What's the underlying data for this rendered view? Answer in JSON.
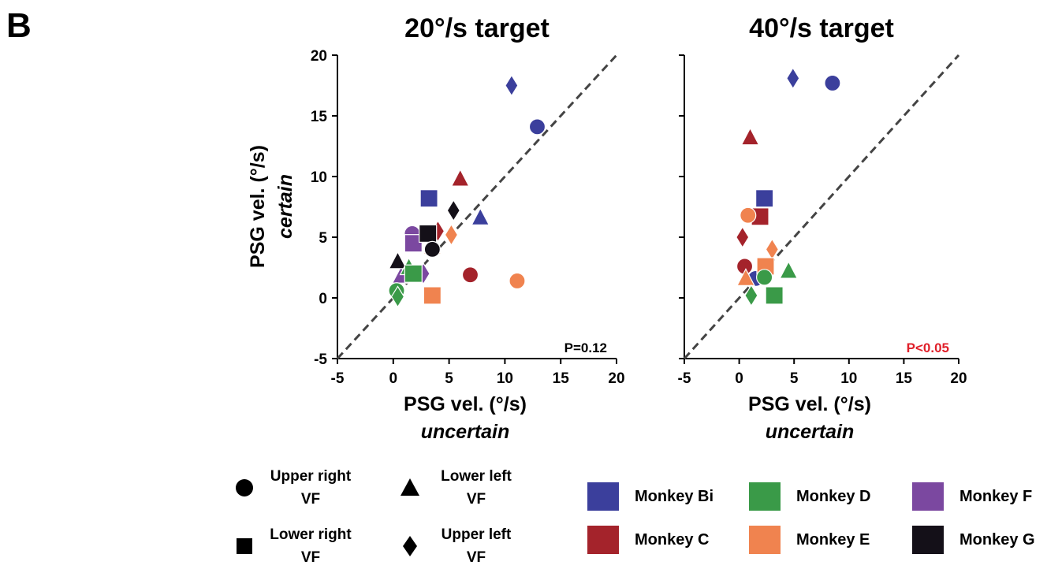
{
  "panel_label": "B",
  "colors": {
    "Bi": "#3b3f9c",
    "C": "#a4232b",
    "D": "#3a9a48",
    "E": "#f0834f",
    "F": "#7b48a0",
    "G": "#141018"
  },
  "pvalue_colors": [
    "#000000",
    "#e0202a"
  ],
  "axis_common": {
    "xlabel": "PSG vel. (°/s)",
    "xlabel_sub": "uncertain",
    "ylabel": "PSG vel. (°/s)",
    "ylabel_sub": "certain",
    "x_ticks": [
      "-5",
      "0",
      "5",
      "10",
      "15",
      "20"
    ],
    "y_ticks": [
      "20",
      "15",
      "10",
      "5",
      "0",
      "-5"
    ]
  },
  "chart_data": [
    {
      "type": "scatter",
      "title": "20°/s target",
      "pvalue": "P=0.12",
      "xlim": [
        -5,
        20
      ],
      "ylim": [
        -5,
        20
      ],
      "diagonal": true,
      "points": [
        {
          "x": 10.6,
          "y": 17.5,
          "shape": "diamond",
          "monkey": "Bi"
        },
        {
          "x": 12.9,
          "y": 14.1,
          "shape": "circle",
          "monkey": "Bi"
        },
        {
          "x": 3.2,
          "y": 8.2,
          "shape": "square",
          "monkey": "Bi"
        },
        {
          "x": 7.8,
          "y": 6.6,
          "shape": "triangle",
          "monkey": "Bi"
        },
        {
          "x": 6.0,
          "y": 9.8,
          "shape": "triangle",
          "monkey": "C"
        },
        {
          "x": 6.9,
          "y": 1.9,
          "shape": "circle",
          "monkey": "C"
        },
        {
          "x": 4.0,
          "y": 5.5,
          "shape": "diamond",
          "monkey": "C"
        },
        {
          "x": 5.4,
          "y": 7.2,
          "shape": "diamond",
          "monkey": "G"
        },
        {
          "x": 5.2,
          "y": 5.2,
          "shape": "diamond",
          "monkey": "E"
        },
        {
          "x": 11.1,
          "y": 1.4,
          "shape": "circle",
          "monkey": "E"
        },
        {
          "x": 3.5,
          "y": 0.2,
          "shape": "square",
          "monkey": "E"
        },
        {
          "x": 3.5,
          "y": 4.2,
          "shape": "triangle",
          "monkey": "E"
        },
        {
          "x": 1.7,
          "y": 5.3,
          "shape": "circle",
          "monkey": "F"
        },
        {
          "x": 1.8,
          "y": 4.5,
          "shape": "square",
          "monkey": "F"
        },
        {
          "x": 2.7,
          "y": 2.0,
          "shape": "diamond",
          "monkey": "F"
        },
        {
          "x": 0.7,
          "y": 1.8,
          "shape": "triangle",
          "monkey": "F"
        },
        {
          "x": 3.1,
          "y": 5.3,
          "shape": "square",
          "monkey": "G"
        },
        {
          "x": 3.5,
          "y": 4.0,
          "shape": "circle",
          "monkey": "G"
        },
        {
          "x": 0.4,
          "y": 3.0,
          "shape": "triangle",
          "monkey": "G"
        },
        {
          "x": 1.4,
          "y": 2.5,
          "shape": "triangle",
          "monkey": "D"
        },
        {
          "x": 1.8,
          "y": 2.0,
          "shape": "square",
          "monkey": "D"
        },
        {
          "x": 0.3,
          "y": 0.6,
          "shape": "circle",
          "monkey": "D"
        },
        {
          "x": 0.4,
          "y": 0.1,
          "shape": "diamond",
          "monkey": "D"
        }
      ]
    },
    {
      "type": "scatter",
      "title": "40°/s target",
      "pvalue": "P<0.05",
      "xlim": [
        -5,
        20
      ],
      "ylim": [
        -5,
        20
      ],
      "diagonal": true,
      "points": [
        {
          "x": 4.9,
          "y": 18.1,
          "shape": "diamond",
          "monkey": "Bi"
        },
        {
          "x": 8.5,
          "y": 17.7,
          "shape": "circle",
          "monkey": "Bi"
        },
        {
          "x": 2.3,
          "y": 8.2,
          "shape": "square",
          "monkey": "Bi"
        },
        {
          "x": 1.5,
          "y": 1.6,
          "shape": "circle",
          "monkey": "Bi"
        },
        {
          "x": 1.0,
          "y": 13.2,
          "shape": "triangle",
          "monkey": "C"
        },
        {
          "x": 1.9,
          "y": 6.7,
          "shape": "square",
          "monkey": "C"
        },
        {
          "x": 0.3,
          "y": 5.0,
          "shape": "diamond",
          "monkey": "C"
        },
        {
          "x": 0.5,
          "y": 2.6,
          "shape": "circle",
          "monkey": "C"
        },
        {
          "x": 0.8,
          "y": 6.8,
          "shape": "circle",
          "monkey": "E"
        },
        {
          "x": 3.0,
          "y": 4.0,
          "shape": "diamond",
          "monkey": "E"
        },
        {
          "x": 2.4,
          "y": 2.6,
          "shape": "square",
          "monkey": "E"
        },
        {
          "x": 0.6,
          "y": 1.6,
          "shape": "triangle",
          "monkey": "E"
        },
        {
          "x": 2.3,
          "y": 1.7,
          "shape": "circle",
          "monkey": "D"
        },
        {
          "x": 4.5,
          "y": 2.2,
          "shape": "triangle",
          "monkey": "D"
        },
        {
          "x": 1.1,
          "y": 0.2,
          "shape": "diamond",
          "monkey": "D"
        },
        {
          "x": 3.2,
          "y": 0.2,
          "shape": "square",
          "monkey": "D"
        }
      ]
    }
  ],
  "legend": {
    "shapes": [
      {
        "shape": "circle",
        "label": "Upper right\nVF"
      },
      {
        "shape": "triangle",
        "label": "Lower left\nVF"
      },
      {
        "shape": "square",
        "label": "Lower right\nVF"
      },
      {
        "shape": "diamond",
        "label": "Upper left\nVF"
      }
    ],
    "monkeys": [
      {
        "key": "Bi",
        "label": "Monkey Bi"
      },
      {
        "key": "D",
        "label": "Monkey D"
      },
      {
        "key": "F",
        "label": "Monkey F"
      },
      {
        "key": "C",
        "label": "Monkey C"
      },
      {
        "key": "E",
        "label": "Monkey E"
      },
      {
        "key": "G",
        "label": "Monkey G"
      }
    ]
  }
}
